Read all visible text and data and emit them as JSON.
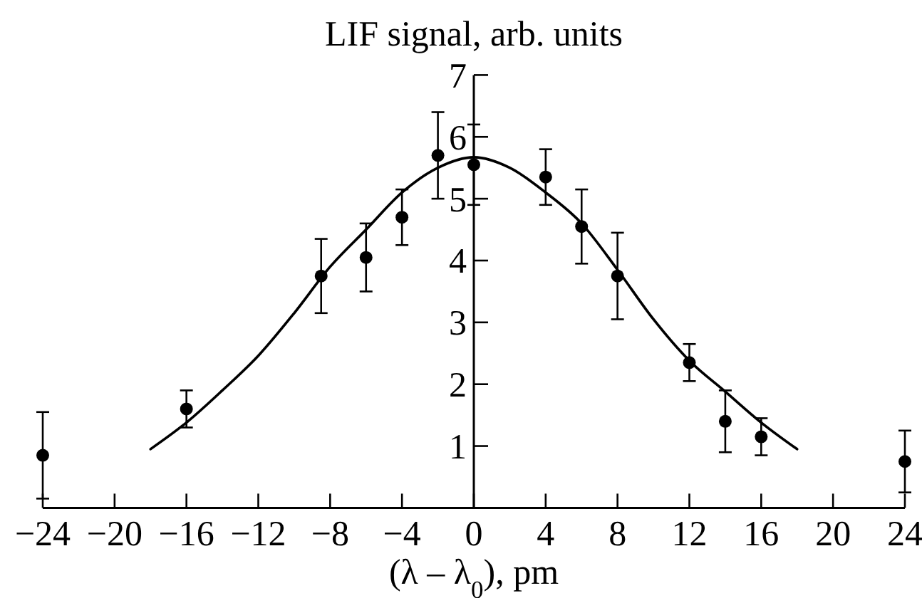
{
  "chart_data": {
    "type": "scatter",
    "xlabel": "(λ – λ$_{0}$), pm",
    "ylabel": "LIF signal, arb. units",
    "xlim": [
      -24,
      24
    ],
    "xticks": [
      -24,
      -20,
      -16,
      -12,
      -8,
      -4,
      0,
      4,
      8,
      12,
      16,
      20,
      24
    ],
    "ylim": [
      0,
      7
    ],
    "yticks": [
      1,
      2,
      3,
      4,
      5,
      6,
      7
    ],
    "marker": "circle",
    "series": [
      {
        "color": "#000000",
        "x": [
          -24,
          -16,
          -8.5,
          -6,
          -4,
          -2,
          0,
          4,
          6,
          8,
          12,
          14,
          16,
          24
        ],
        "values": [
          0.85,
          1.6,
          3.75,
          4.05,
          4.7,
          5.7,
          5.55,
          5.35,
          4.55,
          3.75,
          2.35,
          1.4,
          1.15,
          0.75
        ],
        "errors": [
          0.7,
          0.3,
          0.6,
          0.55,
          0.45,
          0.7,
          0.65,
          0.45,
          0.6,
          0.7,
          0.3,
          0.5,
          0.3,
          0.5
        ]
      },
      {
        "type": "line",
        "color": "#000000",
        "marker": "none",
        "line_style": "solid",
        "x": [
          -18,
          -16,
          -14,
          -12,
          -10,
          -8,
          -6,
          -4,
          -2,
          0,
          2,
          4,
          6,
          8,
          10,
          12,
          14,
          16,
          18
        ],
        "values": [
          0.95,
          1.38,
          1.9,
          2.46,
          3.15,
          3.9,
          4.5,
          5.1,
          5.5,
          5.67,
          5.5,
          5.1,
          4.6,
          3.85,
          3.05,
          2.38,
          1.88,
          1.38,
          0.95
        ]
      }
    ]
  }
}
